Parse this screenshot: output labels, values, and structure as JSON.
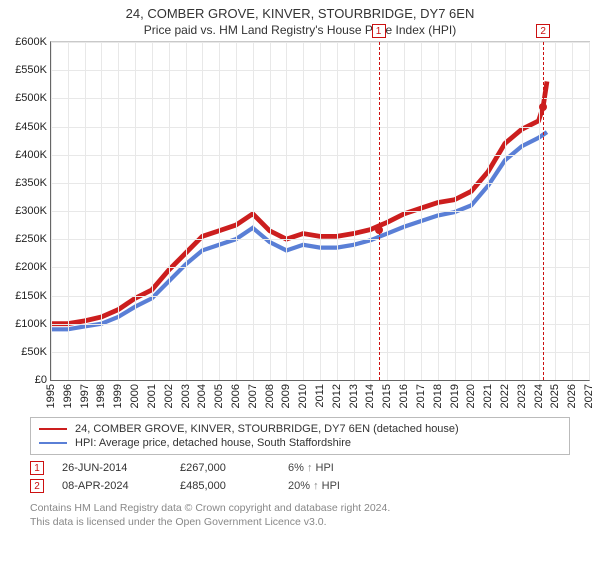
{
  "title_line1": "24, COMBER GROVE, KINVER, STOURBRIDGE, DY7 6EN",
  "title_line2": "Price paid vs. HM Land Registry's House Price Index (HPI)",
  "chart": {
    "type": "line",
    "background_color": "#ffffff",
    "grid_color": "#e8e8e8",
    "axis_color": "#666666",
    "label_fontsize": 11,
    "xlim": [
      1995,
      2027
    ],
    "ylim": [
      0,
      600000
    ],
    "ytick_step": 50000,
    "yticks": [
      "£0",
      "£50K",
      "£100K",
      "£150K",
      "£200K",
      "£250K",
      "£300K",
      "£350K",
      "£400K",
      "£450K",
      "£500K",
      "£550K",
      "£600K"
    ],
    "xticks": [
      1995,
      1996,
      1997,
      1998,
      1999,
      2000,
      2001,
      2002,
      2003,
      2004,
      2005,
      2006,
      2007,
      2008,
      2009,
      2010,
      2011,
      2012,
      2013,
      2014,
      2015,
      2016,
      2017,
      2018,
      2019,
      2020,
      2021,
      2022,
      2023,
      2024,
      2025,
      2026,
      2027
    ],
    "series": [
      {
        "name": "property",
        "label": "24, COMBER GROVE, KINVER, STOURBRIDGE, DY7 6EN (detached house)",
        "color": "#cc1e1e",
        "line_width": 1.6,
        "data": [
          [
            1995,
            100000
          ],
          [
            1996,
            100000
          ],
          [
            1997,
            105000
          ],
          [
            1998,
            112000
          ],
          [
            1999,
            125000
          ],
          [
            2000,
            145000
          ],
          [
            2001,
            160000
          ],
          [
            2002,
            195000
          ],
          [
            2003,
            225000
          ],
          [
            2004,
            255000
          ],
          [
            2005,
            265000
          ],
          [
            2006,
            275000
          ],
          [
            2007,
            295000
          ],
          [
            2008,
            265000
          ],
          [
            2009,
            250000
          ],
          [
            2010,
            260000
          ],
          [
            2011,
            255000
          ],
          [
            2012,
            255000
          ],
          [
            2013,
            260000
          ],
          [
            2014,
            267000
          ],
          [
            2015,
            280000
          ],
          [
            2016,
            295000
          ],
          [
            2017,
            305000
          ],
          [
            2018,
            315000
          ],
          [
            2019,
            320000
          ],
          [
            2020,
            335000
          ],
          [
            2021,
            370000
          ],
          [
            2022,
            420000
          ],
          [
            2023,
            445000
          ],
          [
            2024,
            460000
          ],
          [
            2024.27,
            485000
          ],
          [
            2024.5,
            530000
          ]
        ]
      },
      {
        "name": "hpi",
        "label": "HPI: Average price, detached house, South Staffordshire",
        "color": "#5a7fd6",
        "line_width": 1.4,
        "data": [
          [
            1995,
            90000
          ],
          [
            1996,
            90000
          ],
          [
            1997,
            95000
          ],
          [
            1998,
            100000
          ],
          [
            1999,
            112000
          ],
          [
            2000,
            130000
          ],
          [
            2001,
            145000
          ],
          [
            2002,
            175000
          ],
          [
            2003,
            205000
          ],
          [
            2004,
            230000
          ],
          [
            2005,
            240000
          ],
          [
            2006,
            250000
          ],
          [
            2007,
            270000
          ],
          [
            2008,
            245000
          ],
          [
            2009,
            230000
          ],
          [
            2010,
            240000
          ],
          [
            2011,
            235000
          ],
          [
            2012,
            235000
          ],
          [
            2013,
            240000
          ],
          [
            2014,
            248000
          ],
          [
            2015,
            260000
          ],
          [
            2016,
            272000
          ],
          [
            2017,
            282000
          ],
          [
            2018,
            292000
          ],
          [
            2019,
            298000
          ],
          [
            2020,
            310000
          ],
          [
            2021,
            345000
          ],
          [
            2022,
            390000
          ],
          [
            2023,
            415000
          ],
          [
            2024,
            430000
          ],
          [
            2024.5,
            440000
          ]
        ]
      }
    ],
    "events": [
      {
        "n": "1",
        "x": 2014.48,
        "date": "26-JUN-2014",
        "price": "£267,000",
        "pct": "6%",
        "hpi_label": "HPI",
        "price_y": 267000,
        "marker_color": "#cc1e1e"
      },
      {
        "n": "2",
        "x": 2024.27,
        "date": "08-APR-2024",
        "price": "£485,000",
        "pct": "20%",
        "hpi_label": "HPI",
        "price_y": 485000,
        "marker_color": "#cc1e1e"
      }
    ]
  },
  "legend": {
    "series1_label": "24, COMBER GROVE, KINVER, STOURBRIDGE, DY7 6EN (detached house)",
    "series2_label": "HPI: Average price, detached house, South Staffordshire"
  },
  "footer_line1": "Contains HM Land Registry data © Crown copyright and database right 2024.",
  "footer_line2": "This data is licensed under the Open Government Licence v3.0.",
  "arrow_glyph": "↑"
}
